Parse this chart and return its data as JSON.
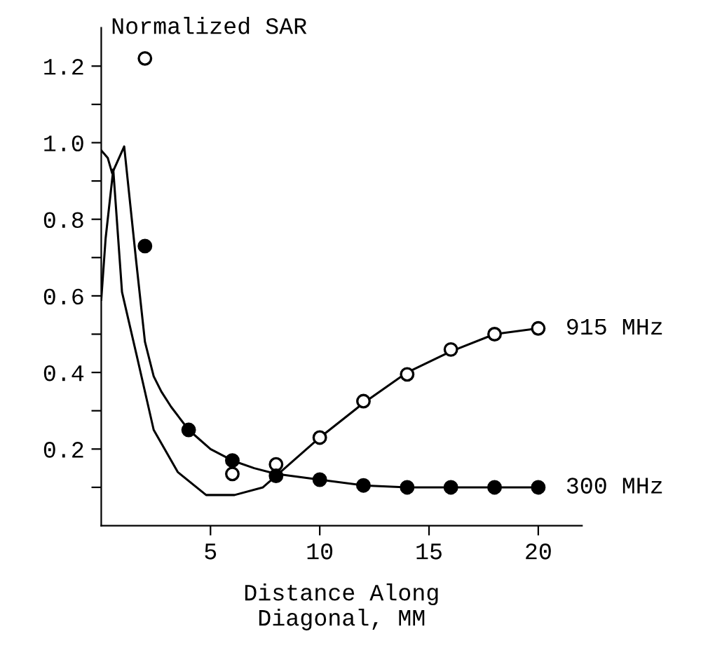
{
  "chart_data": {
    "type": "scatter",
    "ylabel": "Normalized SAR",
    "xlabel": "Distance Along\nDiagonal, MM",
    "series": [
      {
        "type": "line",
        "color": "#000000",
        "marker": "none",
        "x": [
          0,
          0.3,
          0.5,
          1.05,
          1.6,
          2.0,
          2.4,
          2.75,
          3.2,
          4,
          5,
          6,
          7,
          8,
          10,
          12,
          14,
          16,
          18,
          20
        ],
        "values": [
          0.98,
          0.96,
          0.92,
          0.99,
          0.69,
          0.48,
          0.39,
          0.35,
          0.31,
          0.25,
          0.2,
          0.17,
          0.15,
          0.135,
          0.12,
          0.105,
          0.1,
          0.1,
          0.1,
          0.1
        ]
      },
      {
        "type": "line",
        "color": "#000000",
        "marker": "none",
        "x": [
          0,
          0.2,
          0.55,
          0.95,
          1.6,
          2.4,
          3.5,
          4.8,
          6.1,
          7.4,
          8.2,
          10,
          12,
          14,
          16,
          18,
          20
        ],
        "values": [
          0.59,
          0.75,
          0.93,
          0.61,
          0.45,
          0.25,
          0.14,
          0.08,
          0.08,
          0.1,
          0.14,
          0.23,
          0.32,
          0.4,
          0.455,
          0.5,
          0.515
        ]
      },
      {
        "name": "915 MHz",
        "color": "#ffffff",
        "marker": "circle",
        "x": [
          2,
          6,
          8,
          10,
          12,
          14,
          16,
          18,
          20
        ],
        "values": [
          1.22,
          0.135,
          0.16,
          0.23,
          0.325,
          0.395,
          0.46,
          0.5,
          0.515
        ]
      },
      {
        "name": "300 MHz",
        "color": "#000000",
        "marker": "circle",
        "x": [
          2,
          4,
          6,
          8,
          10,
          12,
          14,
          16,
          18,
          20
        ],
        "values": [
          0.73,
          0.25,
          0.17,
          0.13,
          0.12,
          0.105,
          0.1,
          0.1,
          0.1,
          0.1
        ]
      }
    ],
    "xlim": [
      0,
      22
    ],
    "xticks": [
      5,
      10,
      15,
      20
    ],
    "ylim": [
      0,
      1.3
    ],
    "yticks": [
      {
        "value": 0.1,
        "label": null
      },
      0.2,
      {
        "value": 0.3,
        "label": null
      },
      0.4,
      {
        "value": 0.5,
        "label": null
      },
      0.6,
      {
        "value": 0.7,
        "label": null
      },
      0.8,
      {
        "value": 0.9,
        "label": null
      },
      {
        "value": 1.0,
        "label": "1.0"
      },
      {
        "value": 1.1,
        "label": null
      },
      1.2
    ],
    "grid": false,
    "legend": false
  }
}
